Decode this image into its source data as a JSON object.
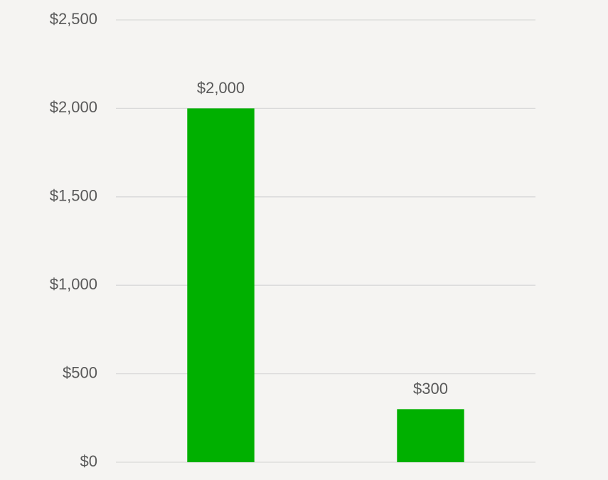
{
  "chart_data": {
    "type": "bar",
    "categories": [
      null,
      null
    ],
    "values": [
      2000,
      300
    ],
    "value_labels": [
      "$2,000",
      "$300"
    ],
    "color": "#00b000",
    "ylim": [
      0,
      2500
    ],
    "yticks": [
      {
        "value": 0,
        "label": "$0"
      },
      {
        "value": 500,
        "label": "$500"
      },
      {
        "value": 1000,
        "label": "$1,000"
      },
      {
        "value": 1500,
        "label": "$1,500"
      },
      {
        "value": 2000,
        "label": "$2,000"
      },
      {
        "value": 2500,
        "label": "$2,500"
      }
    ],
    "grid": true
  }
}
